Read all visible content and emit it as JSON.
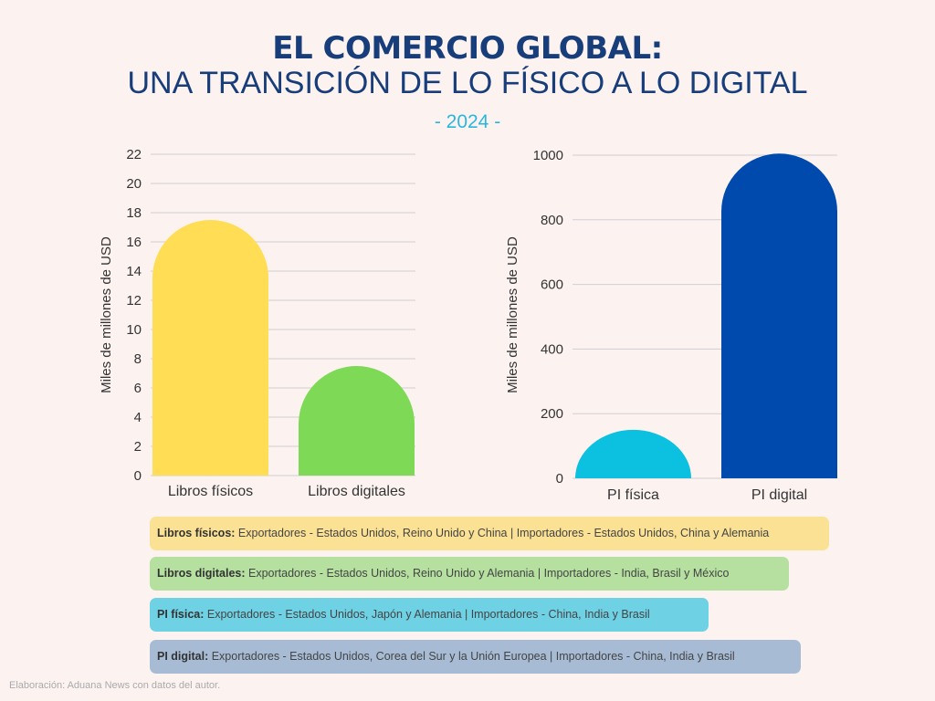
{
  "header": {
    "title_line1": "EL COMERCIO GLOBAL:",
    "title_line2": "UNA TRANSICIÓN DE LO FÍSICO A LO DIGITAL",
    "year": "- 2024 -"
  },
  "chart_data": [
    {
      "type": "bar",
      "categories": [
        "Libros físicos",
        "Libros digitales"
      ],
      "values": [
        17.5,
        7.5
      ],
      "colors": [
        "#ffdd55",
        "#7ed957"
      ],
      "ylabel": "Miles de millones de USD",
      "xlabel": "",
      "ylim": [
        0,
        22
      ],
      "yticks": [
        0,
        2,
        4,
        6,
        8,
        10,
        12,
        14,
        16,
        18,
        20,
        22
      ],
      "grid": true
    },
    {
      "type": "bar",
      "categories": [
        "PI física",
        "PI digital"
      ],
      "values": [
        150,
        1005
      ],
      "colors": [
        "#0cc0df",
        "#004aad"
      ],
      "ylabel": "Miles de millones de USD",
      "xlabel": "",
      "ylim": [
        0,
        1000
      ],
      "yticks": [
        0,
        200,
        400,
        600,
        800,
        1000
      ],
      "grid": true
    }
  ],
  "legend_boxes": [
    {
      "label": "Libros físicos:",
      "text": " Exportadores - Estados Unidos, Reino Unido y China | Importadores - Estados Unidos, China y Alemania"
    },
    {
      "label": "Libros digitales:",
      "text": " Exportadores - Estados Unidos, Reino Unido y Alemania | Importadores - India, Brasil y México"
    },
    {
      "label": "PI física:",
      "text": " Exportadores - Estados Unidos, Japón y Alemania | Importadores - China, India y Brasil"
    },
    {
      "label": "PI digital:",
      "text": " Exportadores - Estados Unidos, Corea del Sur y la Unión Europea | Importadores - China, India y Brasil"
    }
  ],
  "source": "Elaboración: Aduana News con datos del autor."
}
